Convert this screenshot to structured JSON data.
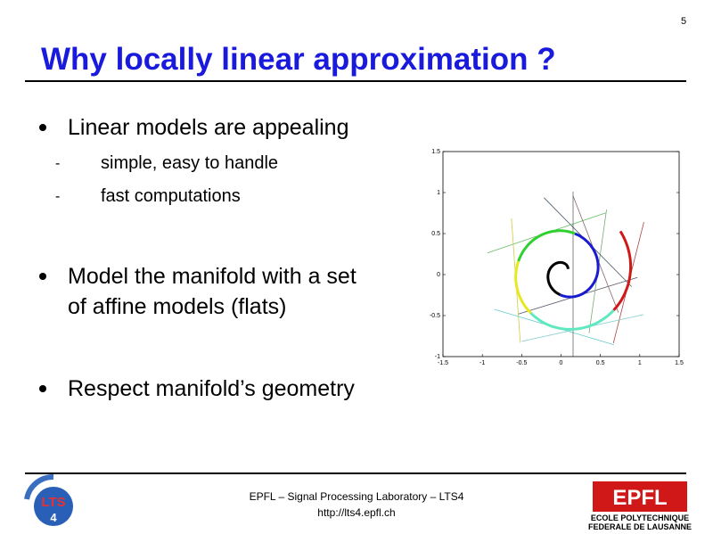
{
  "page_number": "5",
  "title": "Why locally linear approximation ?",
  "bullets": [
    {
      "text": "Linear models are appealing",
      "sub": [
        "simple, easy to handle",
        "fast computations"
      ]
    },
    {
      "text": "Model the manifold with a set of affine models (flats)"
    },
    {
      "text": "Respect manifold’s geometry"
    }
  ],
  "figure": {
    "xlim": [
      -1.5,
      1.5
    ],
    "ylim": [
      -1,
      1.5
    ],
    "xticks": [
      -1.5,
      -1,
      -0.5,
      0,
      0.5,
      1,
      1.5
    ],
    "yticks": [
      -1,
      -0.5,
      0,
      0.5,
      1,
      1.5
    ]
  },
  "footer": {
    "line1": "EPFL – Signal Processing Laboratory – LTS4",
    "line2": "http://lts4.epfl.ch"
  },
  "logo_left": {
    "text": "LTS",
    "number": "4"
  },
  "logo_right": {
    "text": "EPFL",
    "subtitle_1": "ECOLE POLYTECHNIQUE",
    "subtitle_2": "FEDERALE DE LAUSANNE"
  }
}
